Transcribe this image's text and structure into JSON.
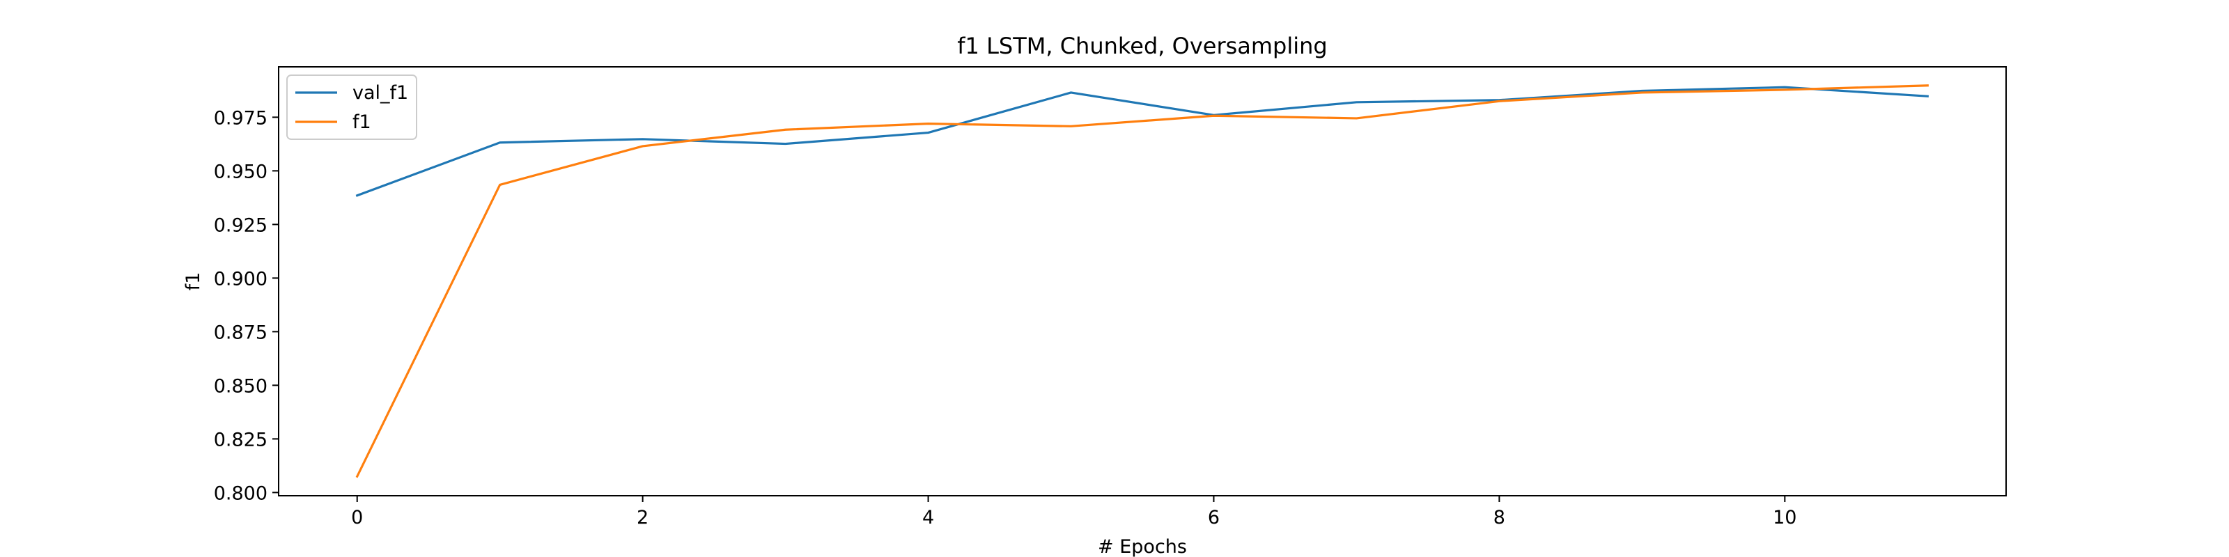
{
  "chart_data": {
    "type": "line",
    "title": "f1 LSTM, Chunked, Oversampling",
    "xlabel": "# Epochs",
    "ylabel": "f1",
    "xlim": [
      -0.55,
      11.55
    ],
    "ylim": [
      0.7985,
      0.9985
    ],
    "x_ticks": [
      0,
      2,
      4,
      6,
      8,
      10
    ],
    "y_ticks": [
      0.8,
      0.825,
      0.85,
      0.875,
      0.9,
      0.925,
      0.95,
      0.975
    ],
    "y_tick_labels": [
      "0.800",
      "0.825",
      "0.850",
      "0.875",
      "0.900",
      "0.925",
      "0.950",
      "0.975"
    ],
    "grid": false,
    "legend_position": "top-left",
    "x": [
      0,
      1,
      2,
      3,
      4,
      5,
      6,
      7,
      8,
      9,
      10,
      11
    ],
    "series": [
      {
        "name": "val_f1",
        "color": "#1f77b4",
        "values": [
          0.9385,
          0.9632,
          0.9648,
          0.9626,
          0.9678,
          0.9865,
          0.976,
          0.982,
          0.983,
          0.9873,
          0.989,
          0.9848
        ]
      },
      {
        "name": "f1",
        "color": "#ff7f0e",
        "values": [
          0.8075,
          0.9435,
          0.9615,
          0.9692,
          0.972,
          0.9708,
          0.9757,
          0.9745,
          0.9825,
          0.9865,
          0.9878,
          0.9898
        ]
      }
    ]
  }
}
